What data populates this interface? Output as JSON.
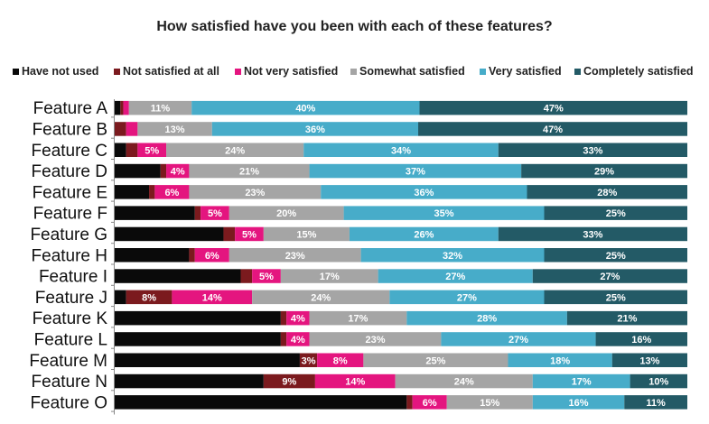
{
  "chart_data": {
    "type": "bar",
    "orientation": "horizontal",
    "stacked": true,
    "title": "How satisfied have you been with each of these features?",
    "categories": [
      "Feature A",
      "Feature B",
      "Feature C",
      "Feature D",
      "Feature E",
      "Feature F",
      "Feature G",
      "Feature H",
      "Feature I",
      "Feature J",
      "Feature K",
      "Feature L",
      "Feature M",
      "Feature N",
      "Feature O"
    ],
    "series": [
      {
        "name": "Have not used",
        "color": "#0a0a0a",
        "values": [
          1,
          0,
          2,
          8,
          6,
          14,
          19,
          13,
          22,
          2,
          29,
          29,
          32,
          26,
          51
        ],
        "labels": [
          "",
          "",
          "",
          "",
          "",
          "",
          "",
          "",
          "",
          "",
          "",
          "",
          "",
          "",
          ""
        ]
      },
      {
        "name": "Not satisfied at all",
        "color": "#7b1a1e",
        "values": [
          0.5,
          2,
          2,
          1,
          1,
          1,
          2,
          1,
          2,
          8,
          1,
          1,
          3,
          9,
          1
        ],
        "labels": [
          "",
          "",
          "",
          "",
          "",
          "",
          "",
          "",
          "",
          "8%",
          "",
          "",
          "3%",
          "9%",
          ""
        ]
      },
      {
        "name": "Not very satisfied",
        "color": "#e4157f",
        "values": [
          1,
          2,
          5,
          4,
          6,
          5,
          5,
          6,
          5,
          14,
          4,
          4,
          8,
          14,
          6
        ],
        "labels": [
          "",
          "",
          "5%",
          "4%",
          "6%",
          "5%",
          "5%",
          "6%",
          "5%",
          "14%",
          "4%",
          "4%",
          "8%",
          "14%",
          "6%"
        ]
      },
      {
        "name": "Somewhat satisfied",
        "color": "#a5a5a5",
        "values": [
          11,
          13,
          24,
          21,
          23,
          20,
          15,
          23,
          17,
          24,
          17,
          23,
          25,
          24,
          15
        ],
        "labels": [
          "11%",
          "13%",
          "24%",
          "21%",
          "23%",
          "20%",
          "15%",
          "23%",
          "17%",
          "24%",
          "17%",
          "23%",
          "25%",
          "24%",
          "15%"
        ]
      },
      {
        "name": "Very satisfied",
        "color": "#47acc9",
        "values": [
          40,
          36,
          34,
          37,
          36,
          35,
          26,
          32,
          27,
          27,
          28,
          27,
          18,
          17,
          16
        ],
        "labels": [
          "40%",
          "36%",
          "34%",
          "37%",
          "36%",
          "35%",
          "26%",
          "32%",
          "27%",
          "27%",
          "28%",
          "27%",
          "18%",
          "17%",
          "16%"
        ]
      },
      {
        "name": "Completely satisfied",
        "color": "#235a66",
        "values": [
          47,
          47,
          33,
          29,
          28,
          25,
          33,
          25,
          27,
          25,
          21,
          16,
          13,
          10,
          11
        ],
        "labels": [
          "47%",
          "47%",
          "33%",
          "29%",
          "28%",
          "25%",
          "33%",
          "25%",
          "27%",
          "25%",
          "21%",
          "16%",
          "13%",
          "10%",
          "11%"
        ]
      }
    ],
    "xlim": [
      0,
      100
    ],
    "grid": false,
    "legend_position": "top"
  }
}
